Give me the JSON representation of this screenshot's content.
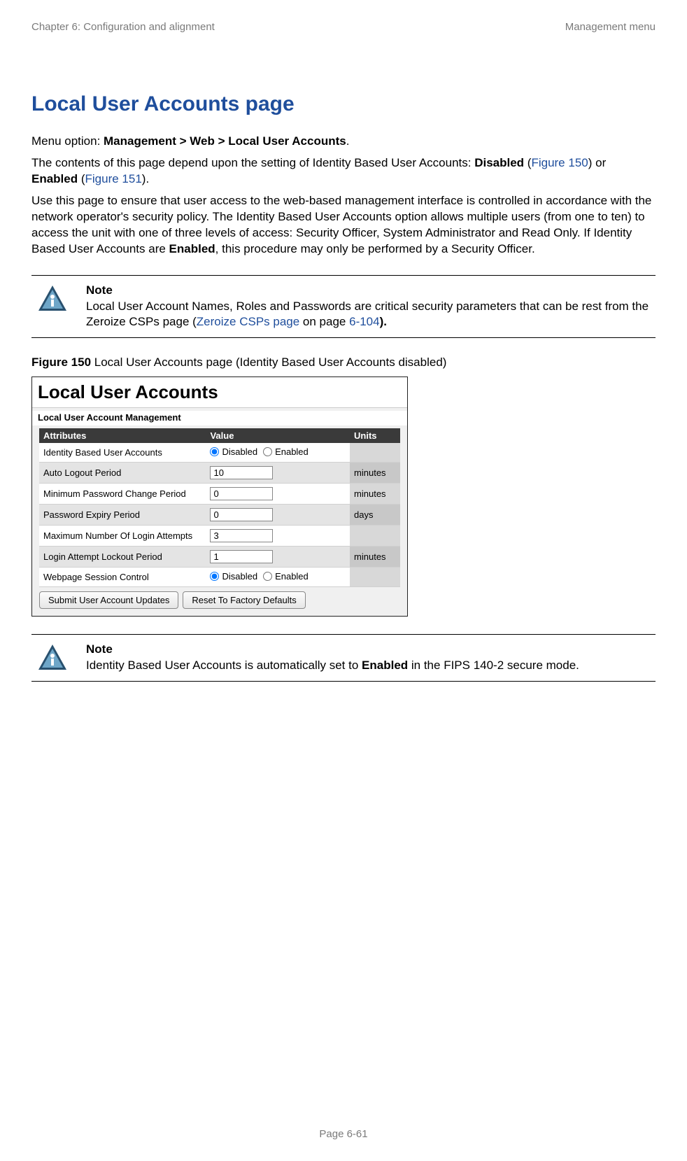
{
  "header": {
    "left": "Chapter 6:  Configuration and alignment",
    "right": "Management menu"
  },
  "title": "Local User Accounts page",
  "menu_line": {
    "prefix": "Menu option: ",
    "path": "Management > Web > Local User Accounts",
    "suffix": "."
  },
  "para1": {
    "t1": "The contents of this page depend upon the setting of Identity Based User Accounts: ",
    "disabled": "Disabled",
    "t2": " (",
    "fig150": "Figure 150",
    "t3": ") or ",
    "enabled": "Enabled",
    "t4": " (",
    "fig151": "Figure 151",
    "t5": ")."
  },
  "para2": {
    "t1": "Use this page to ensure that user access to the web-based management interface is controlled in accordance with the network operator's security policy. The Identity Based User Accounts option allows multiple users (from one to ten) to access the unit with one of three levels of access: Security Officer, System Administrator and Read Only. If Identity Based User Accounts are ",
    "enabled": "Enabled",
    "t2": ", this procedure may only be performed by a Security Officer."
  },
  "note1": {
    "title": "Note",
    "t1": "Local User Account Names, Roles and Passwords are critical security parameters that can be rest from the Zeroize CSPs page (",
    "link": "Zeroize CSPs page",
    "t2": " on page ",
    "pageref": "6-104",
    "t3": ")."
  },
  "figure_caption": {
    "label": "Figure 150",
    "text": "  Local User Accounts page (Identity Based User Accounts disabled)"
  },
  "panel": {
    "title": "Local User Accounts",
    "subtitle": "Local User Account Management",
    "headers": {
      "c1": "Attributes",
      "c2": "Value",
      "c3": "Units"
    },
    "rows": [
      {
        "attr": "Identity Based User Accounts",
        "kind": "radio",
        "opt1": "Disabled",
        "opt2": "Enabled",
        "sel": 0,
        "units": ""
      },
      {
        "attr": "Auto Logout Period",
        "kind": "num",
        "value": "10",
        "units": "minutes"
      },
      {
        "attr": "Minimum Password Change Period",
        "kind": "num",
        "value": "0",
        "units": "minutes"
      },
      {
        "attr": "Password Expiry Period",
        "kind": "num",
        "value": "0",
        "units": "days"
      },
      {
        "attr": "Maximum Number Of Login Attempts",
        "kind": "num",
        "value": "3",
        "units": ""
      },
      {
        "attr": "Login Attempt Lockout Period",
        "kind": "num",
        "value": "1",
        "units": "minutes"
      },
      {
        "attr": "Webpage Session Control",
        "kind": "radio",
        "opt1": "Disabled",
        "opt2": "Enabled",
        "sel": 0,
        "units": ""
      }
    ],
    "buttons": {
      "submit": "Submit User Account Updates",
      "reset": "Reset To Factory Defaults"
    }
  },
  "note2": {
    "title": "Note",
    "t1": "Identity Based User Accounts is automatically set to ",
    "bold": "Enabled",
    "t2": " in the FIPS 140-2 secure mode."
  },
  "footer": "Page 6-61",
  "colors": {
    "accent": "#1f4e9c",
    "header_gray": "#7a7a7a",
    "th_bg": "#3a3a3a"
  }
}
